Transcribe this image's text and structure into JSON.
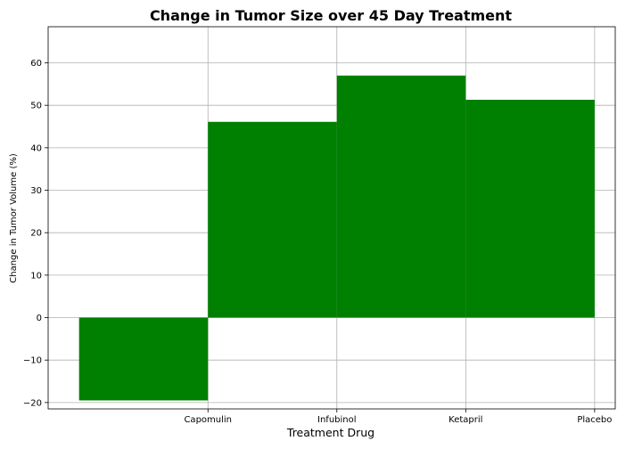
{
  "chart_data": {
    "type": "bar",
    "title": "Change in Tumor Size over 45 Day Treatment",
    "xlabel": "Treatment Drug",
    "ylabel": "Change in Tumor Volume (%)",
    "categories": [
      "Capomulin",
      "Infubinol",
      "Ketapril",
      "Placebo"
    ],
    "values": [
      -19.5,
      46.1,
      57.0,
      51.3
    ],
    "ylim": [
      -21.5,
      68.5
    ],
    "yticks": [
      -20,
      -10,
      0,
      10,
      20,
      30,
      40,
      50,
      60
    ],
    "grid": true,
    "bar_color": "#008000"
  }
}
